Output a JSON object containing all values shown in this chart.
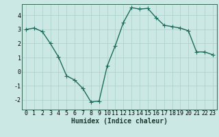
{
  "x": [
    0,
    1,
    2,
    3,
    4,
    5,
    6,
    7,
    8,
    9,
    10,
    11,
    12,
    13,
    14,
    15,
    16,
    17,
    18,
    19,
    20,
    21,
    22,
    23
  ],
  "y": [
    3.0,
    3.1,
    2.85,
    2.0,
    1.05,
    -0.3,
    -0.6,
    -1.2,
    -2.15,
    -2.1,
    0.4,
    1.85,
    3.5,
    4.55,
    4.45,
    4.5,
    3.85,
    3.3,
    3.2,
    3.1,
    2.9,
    1.4,
    1.4,
    1.2
  ],
  "bg_color": "#cce8e4",
  "grid_color": "#aacfcb",
  "line_color": "#1a6b5a",
  "marker_color": "#1a6b5a",
  "xlabel": "Humidex (Indice chaleur)",
  "xlim": [
    -0.5,
    23.5
  ],
  "ylim": [
    -2.7,
    4.8
  ],
  "yticks": [
    -2,
    -1,
    0,
    1,
    2,
    3,
    4
  ],
  "xticks": [
    0,
    1,
    2,
    3,
    4,
    5,
    6,
    7,
    8,
    9,
    10,
    11,
    12,
    13,
    14,
    15,
    16,
    17,
    18,
    19,
    20,
    21,
    22,
    23
  ],
  "xlabel_fontsize": 7,
  "tick_fontsize": 6,
  "line_width": 1.0,
  "marker_size": 4
}
